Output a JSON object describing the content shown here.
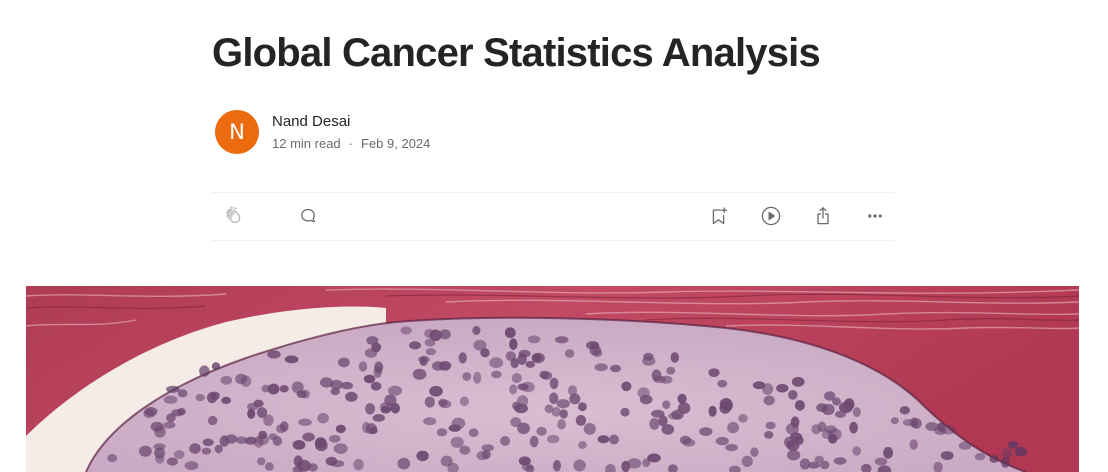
{
  "article": {
    "title": "Global Cancer Statistics Analysis"
  },
  "author": {
    "initial": "N",
    "name": "Nand Desai",
    "avatar_color": "#ec6b0f"
  },
  "meta": {
    "read_time": "12 min read",
    "separator": "·",
    "date": "Feb 9, 2024"
  },
  "actions": {
    "left": [
      "clap-icon",
      "comment-icon"
    ],
    "right": [
      "bookmark-add-icon",
      "play-listen-icon",
      "share-icon",
      "more-options-icon"
    ]
  },
  "hero_image": {
    "subject": "histology micrograph",
    "colors": {
      "stroma": "#b4405a",
      "cells": "#cfb2c9",
      "space": "#f5ece7",
      "nucleus": "#5d3762"
    }
  }
}
